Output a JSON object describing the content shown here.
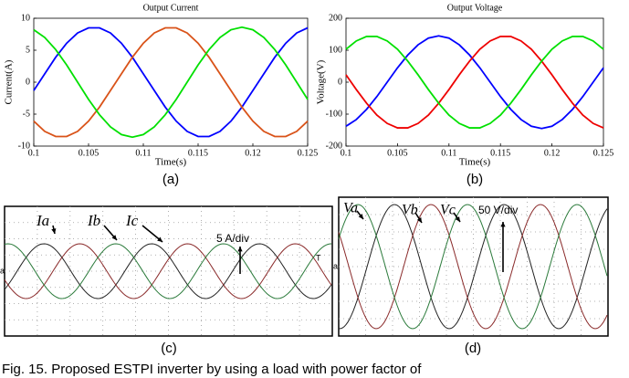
{
  "chart_data": [
    {
      "type": "line",
      "title": "Output Current",
      "x_label": "Time(s)",
      "y_label": "Current(A)",
      "panel_label": "(a)",
      "x": [
        0.1,
        0.101,
        0.102,
        0.103,
        0.104,
        0.105,
        0.106,
        0.107,
        0.108,
        0.109,
        0.11,
        0.111,
        0.112,
        0.113,
        0.114,
        0.115,
        0.116,
        0.117,
        0.118,
        0.119,
        0.12,
        0.121,
        0.122,
        0.123,
        0.124,
        0.125
      ],
      "xlim": [
        0.1,
        0.125
      ],
      "xticks": [
        0.1,
        0.105,
        0.11,
        0.115,
        0.12,
        0.125
      ],
      "ylim": [
        -10,
        10
      ],
      "yticks": [
        -10,
        -5,
        0,
        5,
        10
      ],
      "series": [
        {
          "color": "#0000ff",
          "values": [
            -1.3,
            1.3,
            3.9,
            6.1,
            7.7,
            8.5,
            8.5,
            7.7,
            6.1,
            3.9,
            1.3,
            -1.3,
            -3.9,
            -6.1,
            -7.7,
            -8.5,
            -8.5,
            -7.7,
            -6.1,
            -3.9,
            -1.3,
            1.3,
            3.9,
            6.1,
            7.7,
            8.5
          ]
        },
        {
          "color": "#d95319",
          "values": [
            -6.1,
            -7.7,
            -8.5,
            -8.5,
            -7.7,
            -6.1,
            -3.9,
            -1.3,
            1.3,
            3.9,
            6.1,
            7.7,
            8.5,
            8.5,
            7.7,
            6.1,
            3.9,
            1.3,
            -1.3,
            -3.9,
            -6.1,
            -7.7,
            -8.5,
            -8.5,
            -7.7,
            -6.1
          ]
        },
        {
          "color": "#00e000",
          "values": [
            8.2,
            7.0,
            5.1,
            2.7,
            0,
            -2.7,
            -5.1,
            -7.0,
            -8.2,
            -8.6,
            -8.2,
            -7.0,
            -5.1,
            -2.7,
            0,
            2.7,
            5.1,
            7.0,
            8.2,
            8.6,
            8.2,
            7.0,
            5.1,
            2.7,
            0,
            -2.7
          ]
        }
      ]
    },
    {
      "type": "line",
      "title": "Output Voltage",
      "x_label": "Time(s)",
      "y_label": "Voltage(V)",
      "panel_label": "(b)",
      "x": [
        0.1,
        0.101,
        0.102,
        0.103,
        0.104,
        0.105,
        0.106,
        0.107,
        0.108,
        0.109,
        0.11,
        0.111,
        0.112,
        0.113,
        0.114,
        0.115,
        0.116,
        0.117,
        0.118,
        0.119,
        0.12,
        0.121,
        0.122,
        0.123,
        0.124,
        0.125
      ],
      "xlim": [
        0.1,
        0.125
      ],
      "xticks": [
        0.1,
        0.105,
        0.11,
        0.115,
        0.12,
        0.125
      ],
      "ylim": [
        -200,
        200
      ],
      "yticks": [
        -200,
        -100,
        0,
        100,
        200
      ],
      "series": [
        {
          "color": "#0000ff",
          "values": [
            -138,
            -117,
            -85,
            -45,
            0,
            45,
            85,
            117,
            138,
            145,
            138,
            117,
            85,
            45,
            0,
            -45,
            -85,
            -117,
            -138,
            -145,
            -138,
            -117,
            -85,
            -45,
            0,
            45
          ]
        },
        {
          "color": "#ee0000",
          "values": [
            23,
            -23,
            -66,
            -103,
            -129,
            -143,
            -143,
            -129,
            -103,
            -66,
            -23,
            23,
            66,
            103,
            129,
            143,
            143,
            129,
            103,
            66,
            23,
            -23,
            -66,
            -103,
            -129,
            -143
          ]
        },
        {
          "color": "#00e000",
          "values": [
            103,
            129,
            143,
            143,
            129,
            103,
            66,
            23,
            -23,
            -66,
            -103,
            -129,
            -143,
            -143,
            -129,
            -103,
            -66,
            -23,
            23,
            66,
            103,
            129,
            143,
            143,
            129,
            103
          ]
        }
      ]
    }
  ],
  "panels": {
    "c": {
      "labels": [
        "Ia",
        "Ib",
        "Ic"
      ],
      "scale": "5 A/div",
      "marker": "a",
      "end_marker": "T",
      "panel_label": "(c)"
    },
    "d": {
      "labels": [
        "Va",
        "Vb",
        "Vc"
      ],
      "scale": "50 V/div",
      "marker": "a",
      "panel_label": "(d)"
    }
  },
  "caption": "Fig. 15. Proposed ESTPI inverter by using a load with power factor of"
}
